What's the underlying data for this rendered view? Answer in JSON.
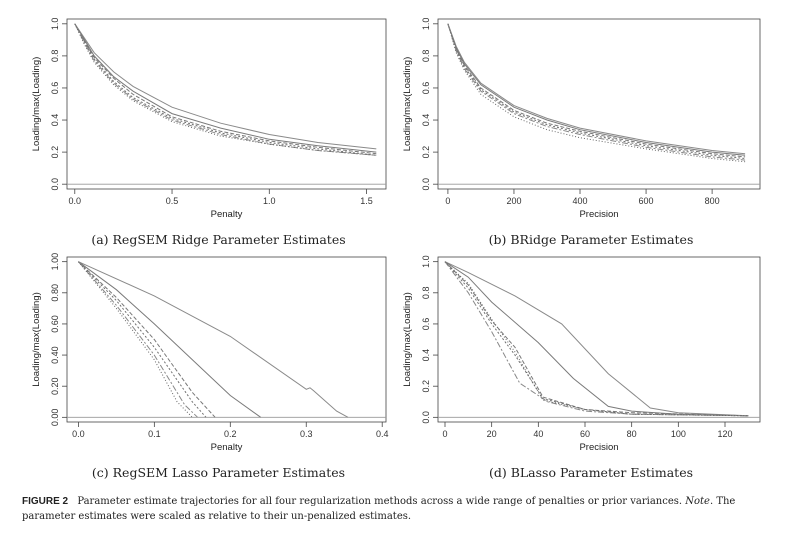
{
  "figure": {
    "label": "FIGURE 2",
    "caption": "Parameter estimate trajectories for all four regularization methods across a wide range of penalties or prior variances.",
    "note_label": "Note",
    "note_text": ". The parameter estimates were scaled as relative to their un-penalized estimates."
  },
  "chart_data": [
    {
      "id": "a",
      "type": "line",
      "caption": "(a) RegSEM Ridge Parameter Estimates",
      "xlabel": "Penalty",
      "ylabel": "Loading/max(Loading)",
      "xlim": [
        -0.04,
        1.6
      ],
      "ylim": [
        -0.03,
        1.03
      ],
      "xticks": [
        {
          "v": 0.0,
          "label": "0.0"
        },
        {
          "v": 0.5,
          "label": "0.5"
        },
        {
          "v": 1.0,
          "label": "1.0"
        },
        {
          "v": 1.5,
          "label": "1.5"
        }
      ],
      "yticks": [
        {
          "v": 0.0,
          "label": "0.0"
        },
        {
          "v": 0.2,
          "label": "0.2"
        },
        {
          "v": 0.4,
          "label": "0.4"
        },
        {
          "v": 0.6,
          "label": "0.6"
        },
        {
          "v": 0.8,
          "label": "0.8"
        },
        {
          "v": 1.0,
          "label": "1.0"
        }
      ],
      "hline": 0.0,
      "grid": false,
      "series": [
        {
          "x": [
            0,
            0.05,
            0.1,
            0.2,
            0.3,
            0.5,
            0.75,
            1.0,
            1.25,
            1.55
          ],
          "y": [
            1.0,
            0.91,
            0.82,
            0.7,
            0.61,
            0.48,
            0.38,
            0.31,
            0.26,
            0.22
          ]
        },
        {
          "x": [
            0,
            0.05,
            0.1,
            0.2,
            0.3,
            0.5,
            0.75,
            1.0,
            1.25,
            1.55
          ],
          "y": [
            1.0,
            0.9,
            0.8,
            0.67,
            0.58,
            0.44,
            0.35,
            0.28,
            0.24,
            0.2
          ]
        },
        {
          "x": [
            0,
            0.05,
            0.1,
            0.2,
            0.3,
            0.5,
            0.75,
            1.0,
            1.25,
            1.55
          ],
          "y": [
            1.0,
            0.89,
            0.79,
            0.66,
            0.56,
            0.42,
            0.33,
            0.27,
            0.23,
            0.19
          ]
        },
        {
          "x": [
            0,
            0.05,
            0.1,
            0.2,
            0.3,
            0.5,
            0.75,
            1.0,
            1.25,
            1.55
          ],
          "y": [
            1.0,
            0.89,
            0.78,
            0.64,
            0.54,
            0.41,
            0.32,
            0.26,
            0.22,
            0.18
          ]
        },
        {
          "x": [
            0,
            0.05,
            0.1,
            0.2,
            0.3,
            0.5,
            0.75,
            1.0,
            1.25,
            1.55
          ],
          "y": [
            1.0,
            0.88,
            0.77,
            0.63,
            0.53,
            0.4,
            0.31,
            0.25,
            0.21,
            0.18
          ]
        },
        {
          "x": [
            0,
            0.05,
            0.1,
            0.2,
            0.3,
            0.5,
            0.75,
            1.0,
            1.25,
            1.55
          ],
          "y": [
            1.0,
            0.87,
            0.76,
            0.62,
            0.52,
            0.39,
            0.3,
            0.25,
            0.21,
            0.18
          ]
        }
      ]
    },
    {
      "id": "b",
      "type": "line",
      "caption": "(b) BRidge Parameter Estimates",
      "xlabel": "Precision",
      "ylabel": "Loading/max(Loading)",
      "xlim": [
        -30,
        945
      ],
      "ylim": [
        -0.03,
        1.03
      ],
      "xticks": [
        {
          "v": 0,
          "label": "0"
        },
        {
          "v": 200,
          "label": "200"
        },
        {
          "v": 400,
          "label": "400"
        },
        {
          "v": 600,
          "label": "600"
        },
        {
          "v": 800,
          "label": "800"
        }
      ],
      "yticks": [
        {
          "v": 0.0,
          "label": "0.0"
        },
        {
          "v": 0.2,
          "label": "0.2"
        },
        {
          "v": 0.4,
          "label": "0.4"
        },
        {
          "v": 0.6,
          "label": "0.6"
        },
        {
          "v": 0.8,
          "label": "0.8"
        },
        {
          "v": 1.0,
          "label": "1.0"
        }
      ],
      "hline": 0.0,
      "grid": false,
      "series": [
        {
          "x": [
            0,
            25,
            50,
            100,
            200,
            300,
            400,
            600,
            800,
            900
          ],
          "y": [
            1.0,
            0.86,
            0.76,
            0.63,
            0.49,
            0.41,
            0.35,
            0.27,
            0.21,
            0.19
          ]
        },
        {
          "x": [
            0,
            25,
            50,
            100,
            200,
            300,
            400,
            600,
            800,
            900
          ],
          "y": [
            1.0,
            0.85,
            0.75,
            0.62,
            0.48,
            0.4,
            0.34,
            0.26,
            0.2,
            0.18
          ]
        },
        {
          "x": [
            0,
            25,
            50,
            100,
            200,
            300,
            400,
            600,
            800,
            900
          ],
          "y": [
            1.0,
            0.84,
            0.74,
            0.6,
            0.46,
            0.38,
            0.33,
            0.25,
            0.19,
            0.17
          ]
        },
        {
          "x": [
            0,
            25,
            50,
            100,
            200,
            300,
            400,
            600,
            800,
            900
          ],
          "y": [
            1.0,
            0.84,
            0.73,
            0.59,
            0.45,
            0.37,
            0.32,
            0.24,
            0.18,
            0.16
          ]
        },
        {
          "x": [
            0,
            25,
            50,
            100,
            200,
            300,
            400,
            600,
            800,
            900
          ],
          "y": [
            1.0,
            0.83,
            0.72,
            0.58,
            0.44,
            0.36,
            0.31,
            0.23,
            0.17,
            0.15
          ]
        },
        {
          "x": [
            0,
            25,
            50,
            100,
            200,
            300,
            400,
            600,
            800,
            900
          ],
          "y": [
            1.0,
            0.82,
            0.71,
            0.56,
            0.42,
            0.34,
            0.29,
            0.22,
            0.16,
            0.14
          ]
        }
      ]
    },
    {
      "id": "c",
      "type": "line",
      "caption": "(c) RegSEM Lasso Parameter Estimates",
      "xlabel": "Penalty",
      "ylabel": "Loading/max(Loading)",
      "xlim": [
        -0.015,
        0.405
      ],
      "ylim": [
        -0.03,
        1.03
      ],
      "xticks": [
        {
          "v": 0.0,
          "label": "0.0"
        },
        {
          "v": 0.1,
          "label": "0.1"
        },
        {
          "v": 0.2,
          "label": "0.2"
        },
        {
          "v": 0.3,
          "label": "0.3"
        },
        {
          "v": 0.4,
          "label": "0.4"
        }
      ],
      "yticks": [
        {
          "v": 0.0,
          "label": "0.00"
        },
        {
          "v": 0.2,
          "label": "0.20"
        },
        {
          "v": 0.4,
          "label": "0.40"
        },
        {
          "v": 0.6,
          "label": "0.60"
        },
        {
          "v": 0.8,
          "label": "0.80"
        },
        {
          "v": 1.0,
          "label": "1.00"
        }
      ],
      "hline": 0.0,
      "grid": false,
      "series": [
        {
          "x": [
            0,
            0.1,
            0.2,
            0.3,
            0.305,
            0.31,
            0.34,
            0.355
          ],
          "y": [
            1.0,
            0.78,
            0.52,
            0.18,
            0.19,
            0.17,
            0.04,
            0.0
          ]
        },
        {
          "x": [
            0,
            0.05,
            0.1,
            0.2,
            0.24
          ],
          "y": [
            1.0,
            0.82,
            0.6,
            0.14,
            0.0
          ]
        },
        {
          "x": [
            0,
            0.05,
            0.1,
            0.15,
            0.18
          ],
          "y": [
            1.0,
            0.77,
            0.5,
            0.16,
            0.0
          ]
        },
        {
          "x": [
            0,
            0.05,
            0.1,
            0.15,
            0.168
          ],
          "y": [
            1.0,
            0.75,
            0.45,
            0.1,
            0.0
          ]
        },
        {
          "x": [
            0,
            0.05,
            0.1,
            0.14,
            0.157
          ],
          "y": [
            1.0,
            0.72,
            0.4,
            0.08,
            0.0
          ]
        },
        {
          "x": [
            0,
            0.05,
            0.1,
            0.13,
            0.15
          ],
          "y": [
            1.0,
            0.7,
            0.37,
            0.1,
            0.0
          ]
        }
      ]
    },
    {
      "id": "d",
      "type": "line",
      "caption": "(d) BLasso Parameter Estimates",
      "xlabel": "Precision",
      "ylabel": "Loading/max(Loading)",
      "xlim": [
        -3,
        135
      ],
      "ylim": [
        -0.03,
        1.03
      ],
      "xticks": [
        {
          "v": 0,
          "label": "0"
        },
        {
          "v": 20,
          "label": "20"
        },
        {
          "v": 40,
          "label": "40"
        },
        {
          "v": 60,
          "label": "60"
        },
        {
          "v": 80,
          "label": "80"
        },
        {
          "v": 100,
          "label": "100"
        },
        {
          "v": 120,
          "label": "120"
        }
      ],
      "yticks": [
        {
          "v": 0.0,
          "label": "0.0"
        },
        {
          "v": 0.2,
          "label": "0.2"
        },
        {
          "v": 0.4,
          "label": "0.4"
        },
        {
          "v": 0.6,
          "label": "0.6"
        },
        {
          "v": 0.8,
          "label": "0.8"
        },
        {
          "v": 1.0,
          "label": "1.0"
        }
      ],
      "hline": 0.0,
      "grid": false,
      "series": [
        {
          "x": [
            0,
            10,
            30,
            50,
            70,
            88,
            100,
            130
          ],
          "y": [
            1.0,
            0.93,
            0.78,
            0.6,
            0.28,
            0.06,
            0.03,
            0.01
          ]
        },
        {
          "x": [
            0,
            10,
            20,
            40,
            55,
            70,
            80,
            100,
            130
          ],
          "y": [
            1.0,
            0.9,
            0.74,
            0.48,
            0.25,
            0.07,
            0.04,
            0.02,
            0.01
          ]
        },
        {
          "x": [
            0,
            10,
            20,
            30,
            42,
            60,
            80,
            130
          ],
          "y": [
            1.0,
            0.85,
            0.62,
            0.45,
            0.13,
            0.05,
            0.03,
            0.01
          ]
        },
        {
          "x": [
            0,
            10,
            20,
            30,
            42,
            60,
            80,
            130
          ],
          "y": [
            1.0,
            0.83,
            0.6,
            0.4,
            0.12,
            0.05,
            0.02,
            0.01
          ]
        },
        {
          "x": [
            0,
            10,
            20,
            32,
            44,
            60,
            80,
            130
          ],
          "y": [
            1.0,
            0.8,
            0.55,
            0.22,
            0.1,
            0.04,
            0.02,
            0.01
          ]
        },
        {
          "x": [
            0,
            10,
            20,
            30,
            42,
            60,
            80,
            130
          ],
          "y": [
            1.0,
            0.86,
            0.63,
            0.42,
            0.11,
            0.05,
            0.02,
            0.01
          ]
        }
      ]
    }
  ]
}
